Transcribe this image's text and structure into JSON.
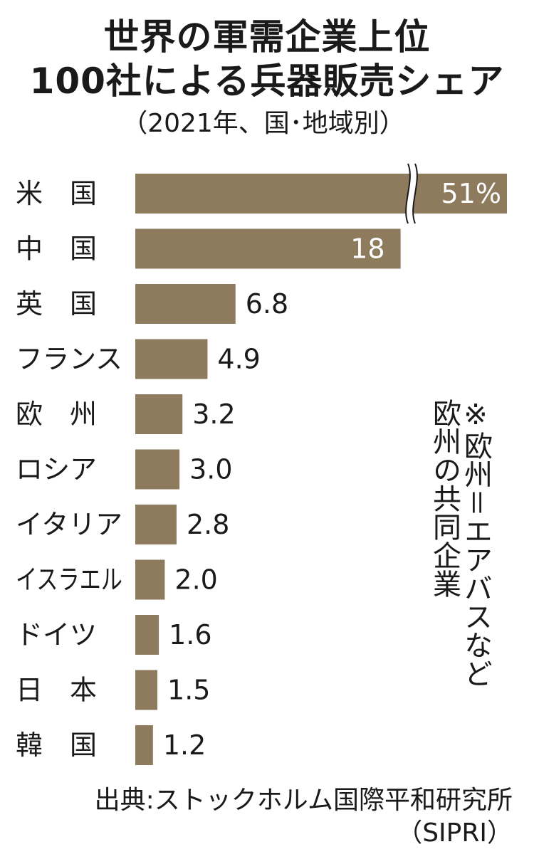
{
  "title_lines": [
    "世界の軍需企業上位",
    "100社による兵器販売シェア"
  ],
  "subtitle": "（2021年、国･地域別）",
  "note": "※欧州＝エアバスなど\n欧州の共同企業",
  "source_lines": [
    "出典:ストックホルム国際平和研究所",
    "（SIPRI）"
  ],
  "colors": {
    "bar": "#8e7a5c",
    "text": "#1a1a1a",
    "inside_label": "#ffffff"
  },
  "chart_data": {
    "type": "bar",
    "orientation": "horizontal",
    "title": "世界の軍需企業上位100社による兵器販売シェア",
    "subtitle": "（2021年、国･地域別）",
    "unit": "%",
    "axis_break_on_first_bar": true,
    "categories": [
      "米　国",
      "中　国",
      "英　国",
      "フランス",
      "欧　州",
      "ロシア",
      "イタリア",
      "イスラエル",
      "ドイツ",
      "日　本",
      "韓　国"
    ],
    "values": [
      51,
      18,
      6.8,
      4.9,
      3.2,
      3.0,
      2.8,
      2.0,
      1.6,
      1.5,
      1.2
    ],
    "value_labels": [
      "51%",
      "18",
      "6.8",
      "4.9",
      "3.2",
      "3.0",
      "2.8",
      "2.0",
      "1.6",
      "1.5",
      "1.2"
    ]
  }
}
